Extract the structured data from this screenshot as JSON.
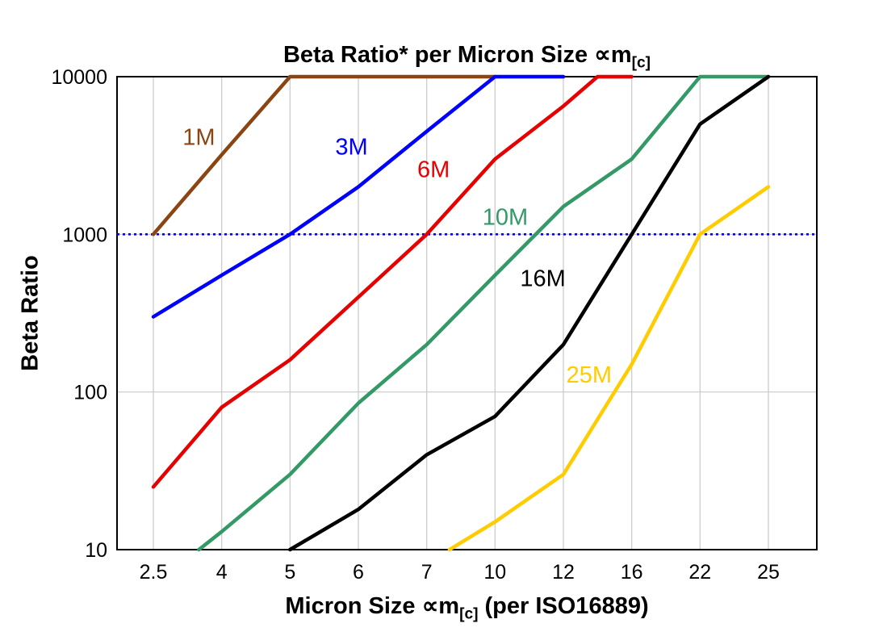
{
  "chart_data": {
    "type": "line",
    "log_y": true,
    "title": {
      "prefix": "Beta Ratio* per Micron Size ∝m",
      "sub": "[c]",
      "suffix": ""
    },
    "xlabel": {
      "prefix": "Micron Size ∝m",
      "sub": "[c]",
      "suffix": " (per ISO16889)"
    },
    "ylabel": "Beta Ratio",
    "ylim": [
      10,
      10000
    ],
    "y_ticks": [
      10,
      100,
      1000,
      10000
    ],
    "y_tick_labels": [
      "10",
      "100",
      "1000",
      "10000"
    ],
    "categories": [
      2.5,
      4,
      5,
      6,
      7,
      10,
      12,
      16,
      22,
      25
    ],
    "x_tick_labels": [
      "2.5",
      "4",
      "5",
      "6",
      "7",
      "10",
      "12",
      "16",
      "22",
      "25"
    ],
    "grid_on": true,
    "grid_color": "#c9c9c9",
    "legend_position": "inline-labels",
    "ref_line": {
      "y": 1000,
      "color": "#0000ff",
      "style": "dotted"
    },
    "series": [
      {
        "name": "1M",
        "color": "#8B4513",
        "points": [
          [
            2.5,
            1000
          ],
          [
            4,
            3200
          ],
          [
            5,
            10000
          ],
          [
            10,
            10000
          ]
        ]
      },
      {
        "name": "3M",
        "color": "#0000FF",
        "points": [
          [
            2.5,
            300
          ],
          [
            4,
            550
          ],
          [
            5,
            1000
          ],
          [
            6,
            2000
          ],
          [
            7,
            4500
          ],
          [
            10,
            10000
          ],
          [
            12,
            10000
          ]
        ]
      },
      {
        "name": "6M",
        "color": "#E60000",
        "points": [
          [
            2.5,
            25
          ],
          [
            4,
            80
          ],
          [
            5,
            160
          ],
          [
            6,
            400
          ],
          [
            7,
            1000
          ],
          [
            10,
            3000
          ],
          [
            12,
            6500
          ],
          [
            14,
            10000
          ],
          [
            16,
            10000
          ]
        ]
      },
      {
        "name": "10M",
        "color": "#339966",
        "points": [
          [
            3.5,
            10
          ],
          [
            4,
            13
          ],
          [
            5,
            30
          ],
          [
            6,
            85
          ],
          [
            7,
            200
          ],
          [
            10,
            550
          ],
          [
            12,
            1500
          ],
          [
            16,
            3000
          ],
          [
            22,
            10000
          ],
          [
            25,
            10000
          ]
        ]
      },
      {
        "name": "16M",
        "color": "#000000",
        "points": [
          [
            5,
            10
          ],
          [
            6,
            18
          ],
          [
            7,
            40
          ],
          [
            10,
            70
          ],
          [
            12,
            200
          ],
          [
            16,
            1000
          ],
          [
            22,
            5000
          ],
          [
            25,
            10000
          ]
        ]
      },
      {
        "name": "25M",
        "color": "#FFCC00",
        "points": [
          [
            8,
            10
          ],
          [
            10,
            15
          ],
          [
            12,
            30
          ],
          [
            16,
            150
          ],
          [
            22,
            1000
          ],
          [
            25,
            2000
          ]
        ]
      }
    ],
    "series_labels": [
      {
        "text": "1M",
        "x": 3.5,
        "y": 3700,
        "color": "#8B4513"
      },
      {
        "text": "3M",
        "x": 5.9,
        "y": 3200,
        "color": "#0000FF"
      },
      {
        "text": "6M",
        "x": 7.3,
        "y": 2300,
        "color": "#E60000"
      },
      {
        "text": "10M",
        "x": 10.3,
        "y": 1150,
        "color": "#339966"
      },
      {
        "text": "16M",
        "x": 11.4,
        "y": 470,
        "color": "#000000"
      },
      {
        "text": "25M",
        "x": 13.5,
        "y": 115,
        "color": "#FFCC00"
      }
    ]
  }
}
